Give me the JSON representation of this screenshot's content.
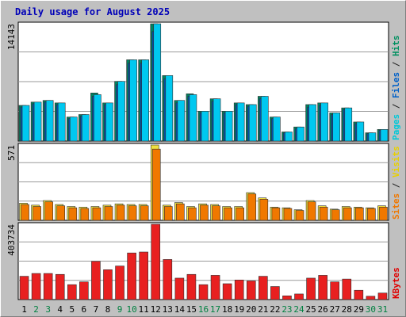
{
  "chart_data": {
    "type": "bar",
    "title": "Daily usage for August 2025",
    "categories": [
      "1",
      "2",
      "3",
      "4",
      "5",
      "6",
      "7",
      "8",
      "9",
      "10",
      "11",
      "12",
      "13",
      "14",
      "15",
      "16",
      "17",
      "18",
      "19",
      "20",
      "21",
      "22",
      "23",
      "24",
      "25",
      "26",
      "27",
      "28",
      "29",
      "30",
      "31"
    ],
    "weekend_days": [
      "2",
      "3",
      "9",
      "10",
      "16",
      "17",
      "23",
      "24",
      "30",
      "31"
    ],
    "panels": [
      {
        "id": "pages-files-hits",
        "ymax_label": "14143",
        "ylim": [
          0,
          14143
        ],
        "ylabel_parts": [
          {
            "text": "Pages",
            "color": "#00c8d8"
          },
          {
            "text": " / ",
            "color": "#202020"
          },
          {
            "text": "Files",
            "color": "#0060c8"
          },
          {
            "text": " / ",
            "color": "#202020"
          },
          {
            "text": "Hits",
            "color": "#009060"
          }
        ],
        "series": [
          {
            "name": "Hits",
            "color": "#008060",
            "values": [
              4300,
              4700,
              4900,
              4600,
              2900,
              3200,
              5800,
              4600,
              7200,
              9800,
              9800,
              14143,
              7900,
              4900,
              5700,
              3600,
              5100,
              3600,
              4600,
              4400,
              5400,
              2900,
              1100,
              1700,
              4400,
              4600,
              3400,
              4000,
              2300,
              1000,
              1400
            ]
          },
          {
            "name": "Files",
            "color": "#0050b0",
            "values": [
              4100,
              4500,
              4700,
              4400,
              2700,
              3000,
              5400,
              4400,
              6800,
              9400,
              9400,
              13200,
              7500,
              4600,
              5400,
              3400,
              4800,
              3400,
              4400,
              4200,
              5100,
              2700,
              1000,
              1500,
              4100,
              4300,
              3200,
              3800,
              2100,
              900,
              1300
            ]
          },
          {
            "name": "Pages",
            "color": "#00c8f0",
            "values": [
              4300,
              4700,
              4900,
              4600,
              2900,
              3200,
              5600,
              4600,
              7200,
              9800,
              9800,
              14143,
              7900,
              4900,
              5600,
              3600,
              5100,
              3600,
              4600,
              4400,
              5400,
              2900,
              1100,
              1700,
              4400,
              4600,
              3400,
              4000,
              2300,
              1000,
              1400
            ]
          }
        ]
      },
      {
        "id": "visits-sites",
        "ymax_label": "571",
        "ylim": [
          0,
          571
        ],
        "ylabel_parts": [
          {
            "text": "Sites",
            "color": "#f07800"
          },
          {
            "text": " / ",
            "color": "#202020"
          },
          {
            "text": "Visits",
            "color": "#e8d000"
          }
        ],
        "series": [
          {
            "name": "Visits",
            "color": "#f0e040",
            "values": [
              130,
              115,
              150,
              120,
              105,
              100,
              105,
              115,
              125,
              120,
              120,
              571,
              115,
              135,
              105,
              125,
              120,
              105,
              105,
              210,
              170,
              100,
              95,
              80,
              150,
              110,
              85,
              105,
              100,
              95,
              110
            ]
          },
          {
            "name": "Sites",
            "color": "#f07800",
            "values": [
              120,
              105,
              140,
              110,
              95,
              90,
              95,
              105,
              115,
              110,
              110,
              540,
              105,
              125,
              95,
              115,
              110,
              95,
              95,
              200,
              160,
              95,
              90,
              75,
              140,
              100,
              80,
              95,
              95,
              90,
              100
            ]
          }
        ]
      },
      {
        "id": "kbytes",
        "ymax_label": "403734",
        "ylim": [
          0,
          403734
        ],
        "ylabel_parts": [
          {
            "text": "KBytes",
            "color": "#e00000"
          }
        ],
        "series": [
          {
            "name": "KBytes",
            "color": "#e82020",
            "values": [
              125000,
              140000,
              140000,
              135000,
              80000,
              95000,
              205000,
              160000,
              180000,
              250000,
              255000,
              403734,
              215000,
              115000,
              135000,
              80000,
              130000,
              85000,
              105000,
              100000,
              125000,
              70000,
              20000,
              30000,
              115000,
              130000,
              95000,
              110000,
              50000,
              18000,
              35000
            ]
          }
        ]
      }
    ]
  }
}
